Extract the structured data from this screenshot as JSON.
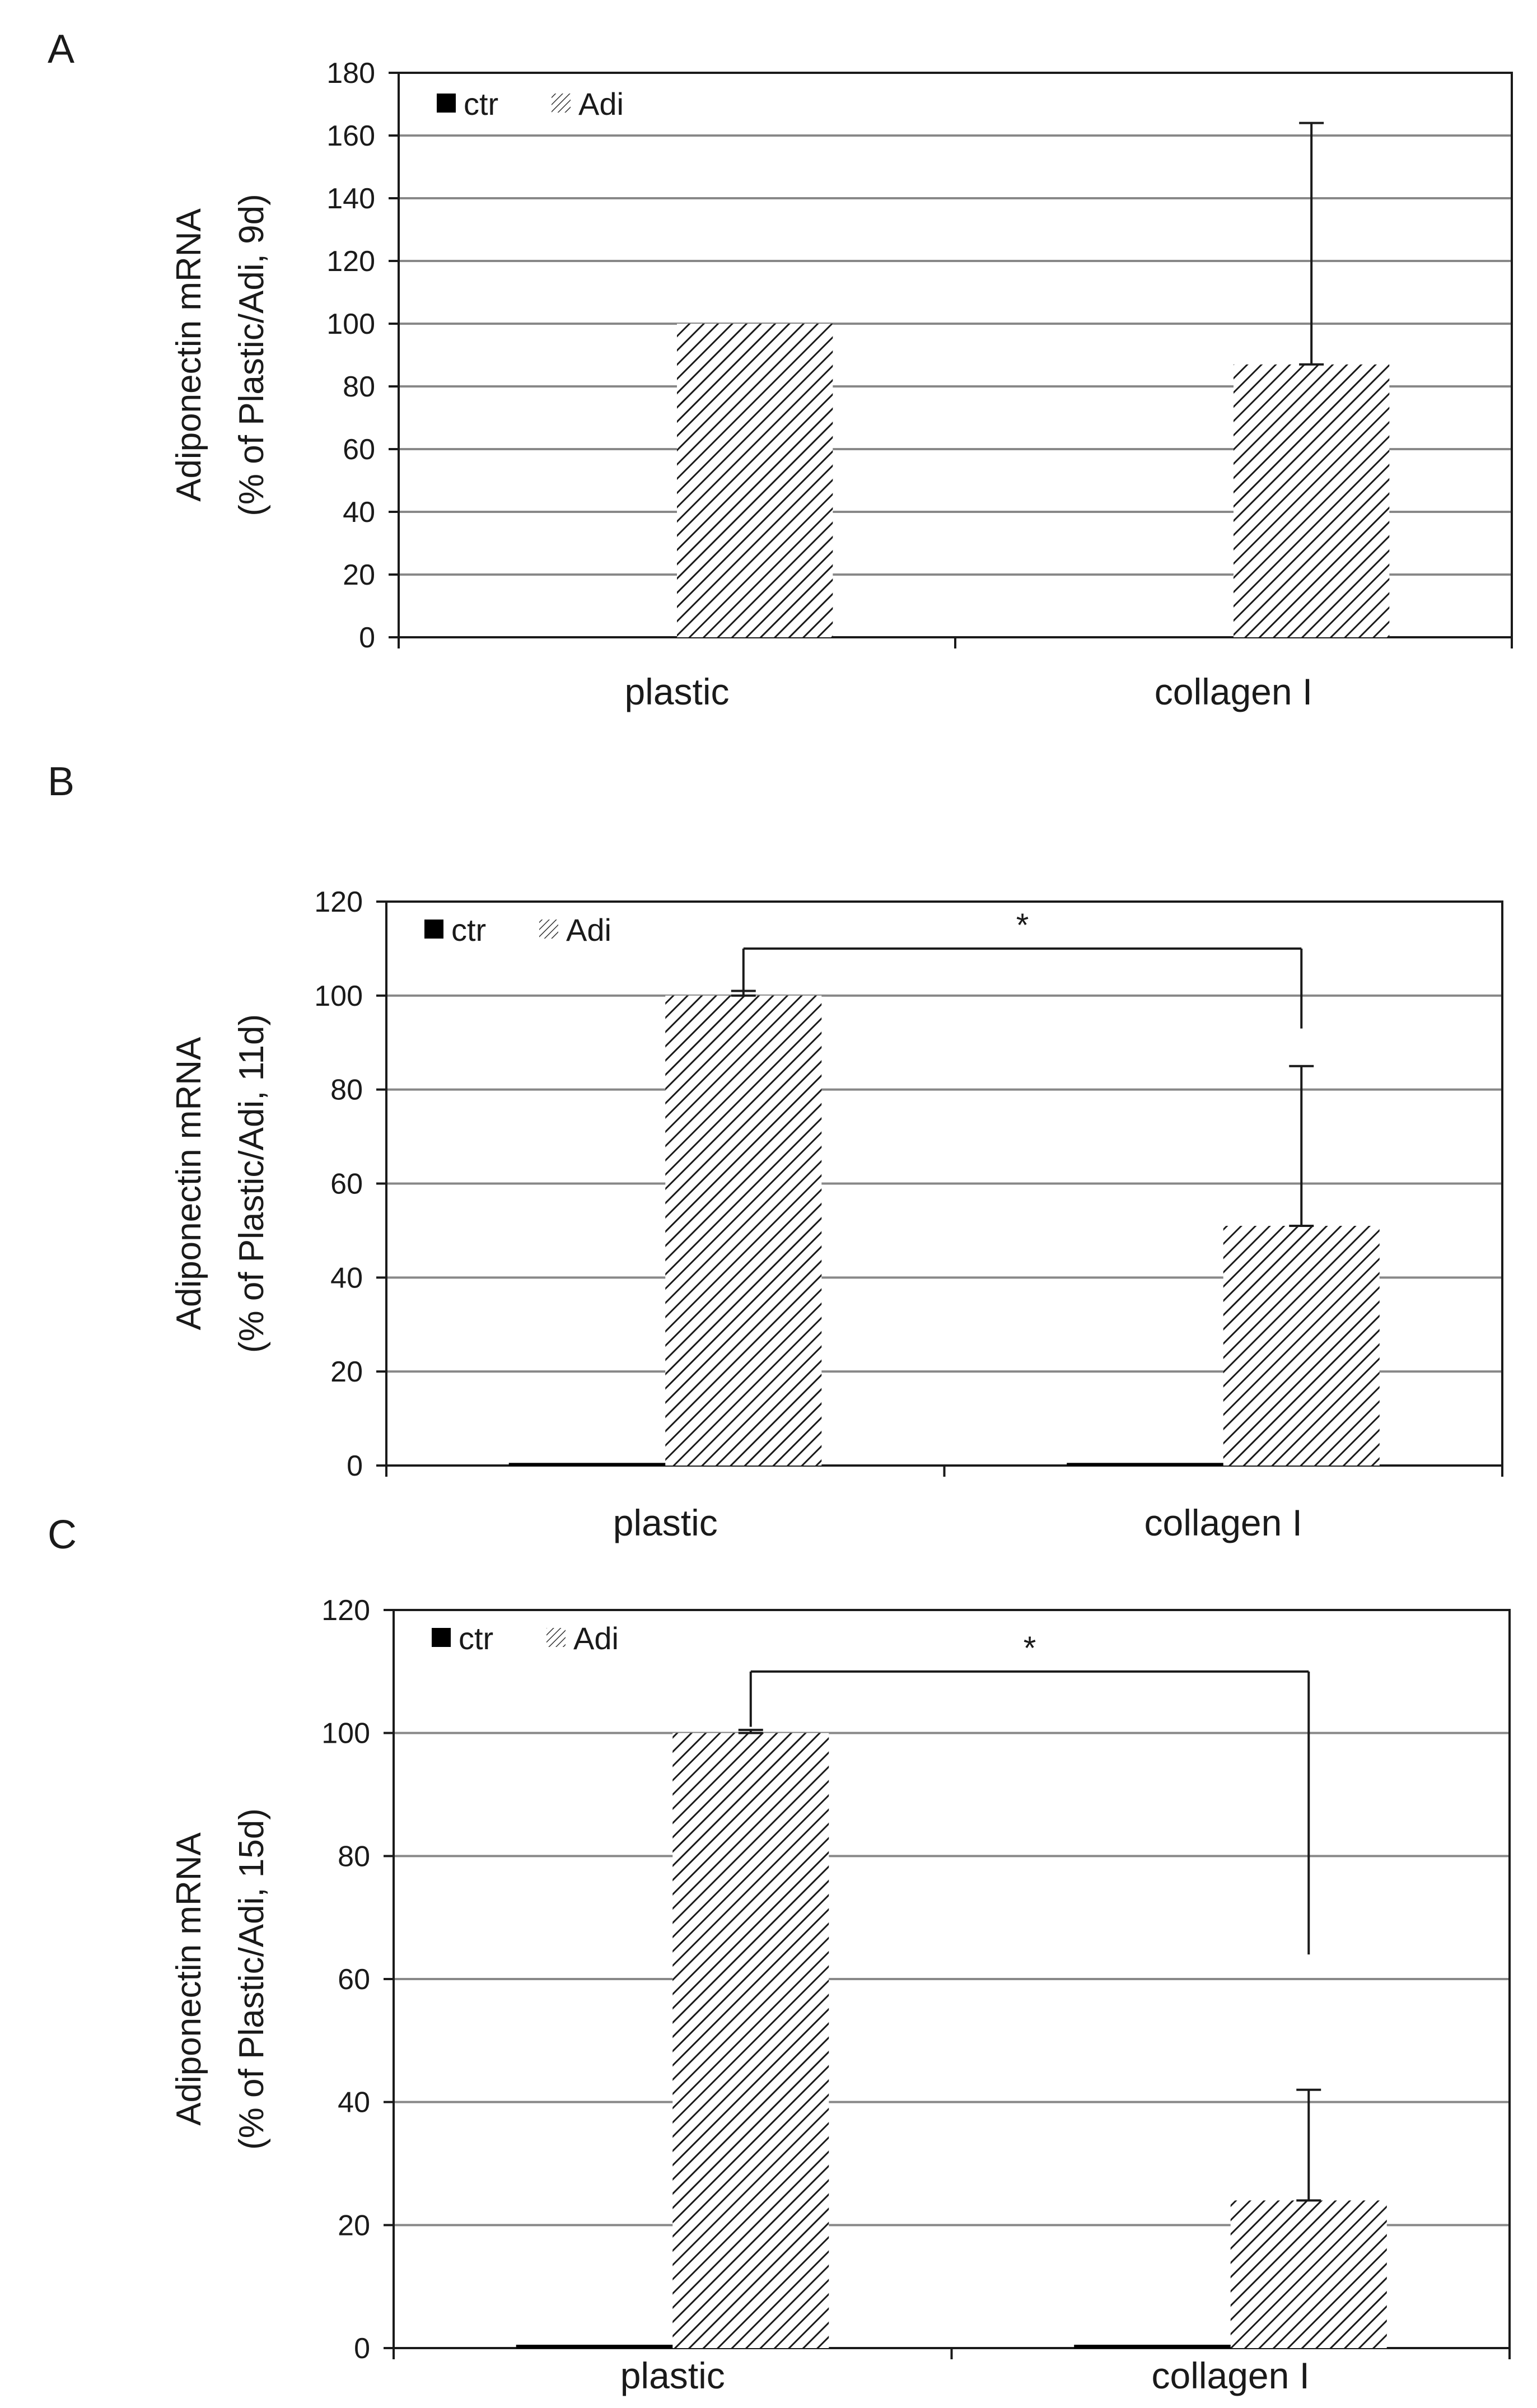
{
  "chart_data": [
    {
      "panel": "A",
      "type": "bar",
      "categories": [
        "plastic",
        "collagen I"
      ],
      "series": [
        {
          "name": "ctr",
          "values": [
            0,
            0
          ],
          "errors": [
            0,
            0
          ]
        },
        {
          "name": "Adi",
          "values": [
            100,
            87
          ],
          "errors": [
            0,
            77
          ]
        }
      ],
      "ylabel": [
        "Adiponectin mRNA",
        "(% of Plastic/Adi, 9d)"
      ],
      "ylim": [
        0,
        180
      ],
      "yticks": [
        0,
        20,
        40,
        60,
        80,
        100,
        120,
        140,
        160,
        180
      ],
      "legend": "top-left",
      "grid": true,
      "significance": null
    },
    {
      "panel": "B",
      "type": "bar",
      "categories": [
        "plastic",
        "collagen I"
      ],
      "series": [
        {
          "name": "ctr",
          "values": [
            0.5,
            0.5
          ],
          "errors": [
            0,
            0
          ]
        },
        {
          "name": "Adi",
          "values": [
            100,
            51
          ],
          "errors": [
            1,
            34
          ]
        }
      ],
      "ylabel": [
        "Adiponectin mRNA",
        "(% of Plastic/Adi, 11d)"
      ],
      "ylim": [
        0,
        120
      ],
      "yticks": [
        0,
        20,
        40,
        60,
        80,
        100,
        120
      ],
      "legend": "top-left",
      "grid": true,
      "significance": {
        "label": "*",
        "from": "plastic",
        "to": "collagen I",
        "level": 110,
        "from_end": 101,
        "to_end": 93
      }
    },
    {
      "panel": "C",
      "type": "bar",
      "categories": [
        "plastic",
        "collagen I"
      ],
      "series": [
        {
          "name": "ctr",
          "values": [
            0.5,
            0.5
          ],
          "errors": [
            0,
            0
          ]
        },
        {
          "name": "Adi",
          "values": [
            100,
            24
          ],
          "errors": [
            0.5,
            18
          ]
        }
      ],
      "ylabel": [
        "Adiponectin mRNA",
        "(% of Plastic/Adi, 15d)"
      ],
      "ylim": [
        0,
        120
      ],
      "yticks": [
        0,
        20,
        40,
        60,
        80,
        100,
        120
      ],
      "legend": "top-left",
      "grid": true,
      "significance": {
        "label": "*",
        "from": "plastic",
        "to": "collagen I",
        "level": 110,
        "from_end": 101,
        "to_end": 64
      }
    }
  ],
  "colors": {
    "ctr": "#000000",
    "adi_hatch": "#1a1a1a",
    "grid": "#888888",
    "frame": "#1a1a1a"
  }
}
